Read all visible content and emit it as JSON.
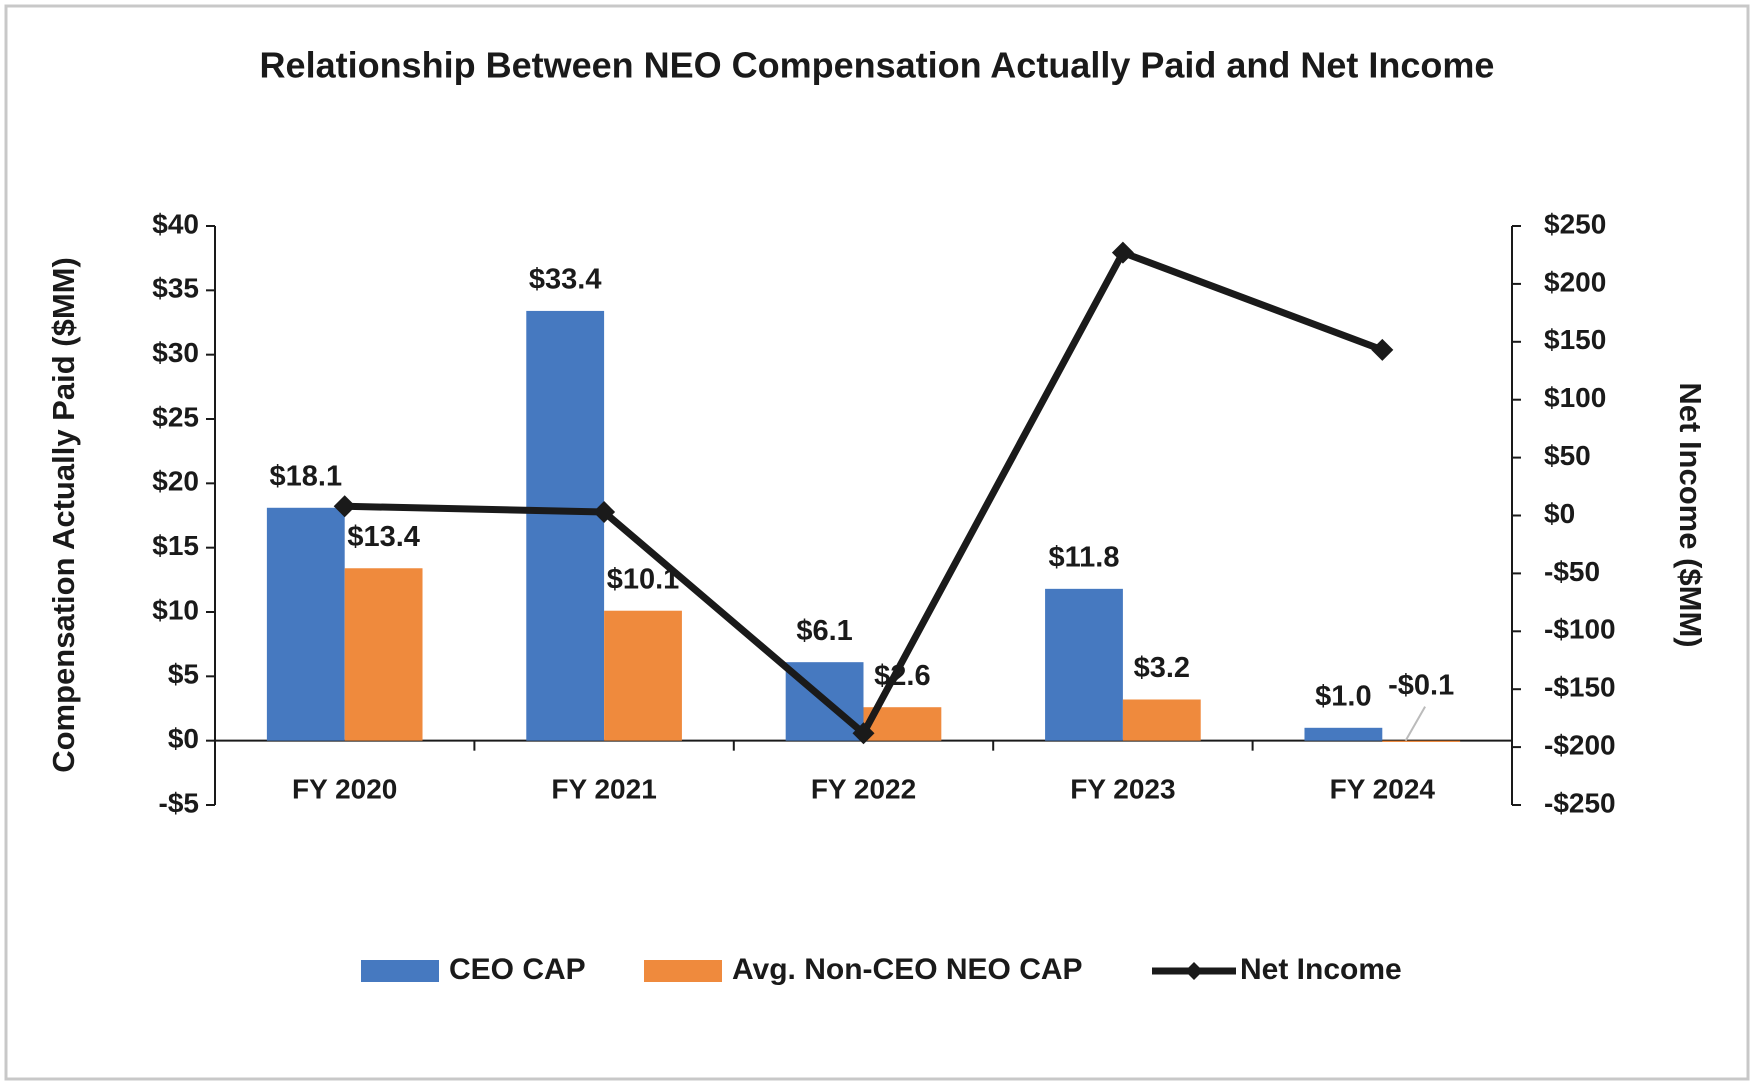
{
  "chart_data": {
    "type": "bar",
    "title": "Relationship Between NEO Compensation Actually Paid and Net Income",
    "categories": [
      "FY 2020",
      "FY 2021",
      "FY 2022",
      "FY 2023",
      "FY 2024"
    ],
    "y_label": "Compensation Actually Paid ($MM)",
    "y2_label": "Net Income ($MM)",
    "ylim": [
      -5,
      40
    ],
    "yticks": [
      {
        "value": -5,
        "label": "-$5"
      },
      {
        "value": 0,
        "label": "$0"
      },
      {
        "value": 5,
        "label": "$5"
      },
      {
        "value": 10,
        "label": "$10"
      },
      {
        "value": 15,
        "label": "$15"
      },
      {
        "value": 20,
        "label": "$20"
      },
      {
        "value": 25,
        "label": "$25"
      },
      {
        "value": 30,
        "label": "$30"
      },
      {
        "value": 35,
        "label": "$35"
      },
      {
        "value": 40,
        "label": "$40"
      }
    ],
    "y2lim": [
      -250,
      250
    ],
    "y2ticks": [
      {
        "value": -250,
        "label": "-$250"
      },
      {
        "value": -200,
        "label": "-$200"
      },
      {
        "value": -150,
        "label": "-$150"
      },
      {
        "value": -100,
        "label": "-$100"
      },
      {
        "value": -50,
        "label": "-$50"
      },
      {
        "value": 0,
        "label": "$0"
      },
      {
        "value": 50,
        "label": "$50"
      },
      {
        "value": 100,
        "label": "$100"
      },
      {
        "value": 150,
        "label": "$150"
      },
      {
        "value": 200,
        "label": "$200"
      },
      {
        "value": 250,
        "label": "$250"
      }
    ],
    "legend": "bottom",
    "series": [
      {
        "name": "CEO CAP",
        "type": "bar",
        "color": "#4679c0",
        "values": [
          18.1,
          33.4,
          6.1,
          11.8,
          1.0
        ],
        "value_labels": [
          "$18.1",
          "$33.4",
          "$6.1",
          "$11.8",
          "$1.0"
        ]
      },
      {
        "name": "Avg. Non-CEO NEO CAP",
        "type": "bar",
        "color": "#ef8a3d",
        "values": [
          13.4,
          10.1,
          2.6,
          3.2,
          -0.1
        ],
        "value_labels": [
          "$13.4",
          "$10.1",
          "$2.6",
          "$3.2",
          "-$0.1"
        ]
      },
      {
        "name": "Net Income",
        "type": "line",
        "axis": "y2",
        "color": "#1a1a1a",
        "values": [
          8,
          3,
          -188,
          227,
          143
        ]
      }
    ]
  }
}
